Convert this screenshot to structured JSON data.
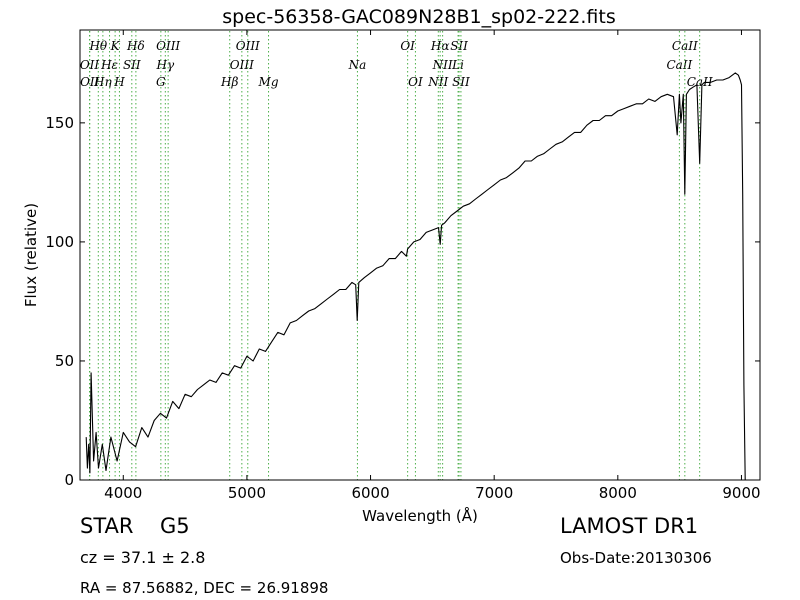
{
  "chart_data": {
    "type": "line",
    "title": "spec-56358-GAC089N28B1_sp02-222.fits",
    "xlabel": "Wavelength (Å)",
    "ylabel": "Flux (relative)",
    "xlim": [
      3650,
      9150
    ],
    "ylim": [
      0,
      189
    ],
    "xticks": [
      4000,
      5000,
      6000,
      7000,
      8000,
      9000
    ],
    "yticks": [
      0,
      50,
      100,
      150
    ],
    "grid": false,
    "legend": "none",
    "colors": {
      "spectrum": "#000000",
      "lines": "#4daf4a"
    },
    "series": [
      {
        "x": [
          3700,
          3710,
          3720,
          3730,
          3740,
          3760,
          3780,
          3800,
          3830,
          3860,
          3900,
          3950,
          4000,
          4050,
          4100,
          4150,
          4200,
          4250,
          4300,
          4350,
          4400,
          4450,
          4500,
          4550,
          4600,
          4650,
          4700,
          4750,
          4800,
          4850,
          4900,
          4950,
          5000,
          5050,
          5100,
          5150,
          5200,
          5250,
          5300,
          5350,
          5400,
          5450,
          5500,
          5550,
          5600,
          5650,
          5700,
          5750,
          5800,
          5850,
          5880,
          5892,
          5905,
          5950,
          6000,
          6050,
          6100,
          6150,
          6200,
          6250,
          6290,
          6300,
          6350,
          6400,
          6450,
          6500,
          6550,
          6563,
          6575,
          6600,
          6650,
          6700,
          6750,
          6800,
          6850,
          6900,
          6950,
          7000,
          7050,
          7100,
          7150,
          7200,
          7250,
          7300,
          7350,
          7400,
          7450,
          7500,
          7550,
          7600,
          7650,
          7700,
          7750,
          7800,
          7850,
          7900,
          7950,
          8000,
          8050,
          8100,
          8150,
          8200,
          8250,
          8300,
          8350,
          8400,
          8450,
          8480,
          8498,
          8510,
          8530,
          8542,
          8555,
          8580,
          8610,
          8640,
          8662,
          8680,
          8700,
          8750,
          8800,
          8850,
          8900,
          8950,
          8975,
          8990,
          9000,
          9010,
          9020,
          9030
        ],
        "y": [
          18,
          5,
          15,
          3,
          45,
          8,
          20,
          5,
          15,
          4,
          18,
          8,
          20,
          16,
          14,
          22,
          18,
          25,
          28,
          26,
          33,
          30,
          36,
          35,
          38,
          40,
          42,
          41,
          45,
          44,
          48,
          47,
          52,
          50,
          55,
          54,
          58,
          62,
          61,
          66,
          67,
          69,
          71,
          72,
          74,
          76,
          78,
          80,
          80,
          83,
          82,
          67,
          83,
          85,
          87,
          89,
          90,
          93,
          93,
          96,
          94,
          97,
          100,
          101,
          104,
          105,
          106,
          99,
          107,
          108,
          111,
          113,
          115,
          116,
          118,
          120,
          122,
          124,
          126,
          127,
          129,
          131,
          134,
          134,
          136,
          137,
          139,
          141,
          142,
          144,
          146,
          146,
          149,
          151,
          151,
          153,
          153,
          155,
          156,
          157,
          158,
          158,
          160,
          159,
          161,
          162,
          161,
          145,
          162,
          150,
          162,
          120,
          162,
          164,
          165,
          166,
          133,
          166,
          167,
          167,
          168,
          168,
          169,
          171,
          170,
          168,
          166,
          120,
          40,
          0
        ]
      }
    ],
    "spectral_lines": [
      {
        "label": "Hθ",
        "x": 3798,
        "row": 1
      },
      {
        "label": "OII",
        "x": 3727,
        "row": 2
      },
      {
        "label": "OII",
        "x": 3729,
        "row": 3
      },
      {
        "label": "Hη",
        "x": 3835,
        "row": 3
      },
      {
        "label": "Hε",
        "x": 3889,
        "row": 2
      },
      {
        "label": "K",
        "x": 3934,
        "row": 1
      },
      {
        "label": "H",
        "x": 3969,
        "row": 3
      },
      {
        "label": "SII",
        "x": 4069,
        "row": 2
      },
      {
        "label": "Hδ",
        "x": 4102,
        "row": 1
      },
      {
        "label": "OIII",
        "x": 4363,
        "row": 1
      },
      {
        "label": "Hγ",
        "x": 4340,
        "row": 2
      },
      {
        "label": "G",
        "x": 4304,
        "row": 3
      },
      {
        "label": "Hβ",
        "x": 4861,
        "row": 3
      },
      {
        "label": "OIII",
        "x": 4959,
        "row": 2
      },
      {
        "label": "OIII",
        "x": 5007,
        "row": 1
      },
      {
        "label": "Mg",
        "x": 5175,
        "row": 3
      },
      {
        "label": "Na",
        "x": 5894,
        "row": 2
      },
      {
        "label": "OI",
        "x": 6300,
        "row": 1
      },
      {
        "label": "OI",
        "x": 6363,
        "row": 3
      },
      {
        "label": "NII",
        "x": 6548,
        "row": 3
      },
      {
        "label": "Hα",
        "x": 6563,
        "row": 1
      },
      {
        "label": "NII",
        "x": 6583,
        "row": 2
      },
      {
        "label": "Li",
        "x": 6708,
        "row": 2
      },
      {
        "label": "SII",
        "x": 6716,
        "row": 1
      },
      {
        "label": "SII",
        "x": 6731,
        "row": 3
      },
      {
        "label": "CaII",
        "x": 8498,
        "row": 2
      },
      {
        "label": "CaII",
        "x": 8542,
        "row": 1
      },
      {
        "label": "CaII",
        "x": 8662,
        "row": 3
      }
    ]
  },
  "info": {
    "object_class": "STAR",
    "subclass": "G5",
    "redshift": "cz = 37.1 ± 2.8",
    "coordinates": "RA = 87.56882, DEC = 26.91898",
    "survey": "LAMOST DR1",
    "obs_date": "Obs-Date:20130306"
  }
}
